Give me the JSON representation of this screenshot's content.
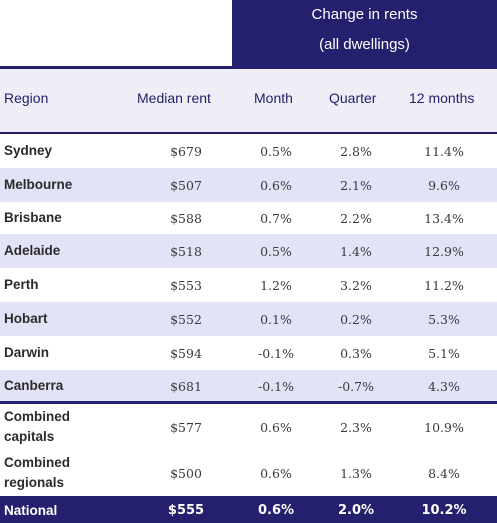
{
  "header": {
    "group_title_line1": "Change in rents",
    "group_title_line2": "(all dwellings)"
  },
  "columns": {
    "region": "Region",
    "median": "Median rent",
    "month": "Month",
    "quarter": "Quarter",
    "year": "12 months"
  },
  "rows": [
    {
      "region": "Sydney",
      "median": "$679",
      "month": "0.5%",
      "quarter": "2.8%",
      "year": "11.4%"
    },
    {
      "region": "Melbourne",
      "median": "$507",
      "month": "0.6%",
      "quarter": "2.1%",
      "year": "9.6%"
    },
    {
      "region": "Brisbane",
      "median": "$588",
      "month": "0.7%",
      "quarter": "2.2%",
      "year": "13.4%"
    },
    {
      "region": "Adelaide",
      "median": "$518",
      "month": "0.5%",
      "quarter": "1.4%",
      "year": "12.9%"
    },
    {
      "region": "Perth",
      "median": "$553",
      "month": "1.2%",
      "quarter": "3.2%",
      "year": "11.2%"
    },
    {
      "region": "Hobart",
      "median": "$552",
      "month": "0.1%",
      "quarter": "0.2%",
      "year": "5.3%"
    },
    {
      "region": "Darwin",
      "median": "$594",
      "month": "-0.1%",
      "quarter": "0.3%",
      "year": "5.1%"
    },
    {
      "region": "Canberra",
      "median": "$681",
      "month": "-0.1%",
      "quarter": "-0.7%",
      "year": "4.3%"
    },
    {
      "region_line1": "Combined",
      "region_line2": "capitals",
      "median": "$577",
      "month": "0.6%",
      "quarter": "2.3%",
      "year": "10.9%"
    },
    {
      "region_line1": "Combined",
      "region_line2": "regionals",
      "median": "$500",
      "month": "0.6%",
      "quarter": "1.3%",
      "year": "8.4%"
    }
  ],
  "national": {
    "region": "National",
    "median": "$555",
    "month": "0.6%",
    "quarter": "2.0%",
    "year": "10.2%"
  },
  "colors": {
    "navy": "#25206d",
    "band": "#e3e3f7",
    "header_bg": "#efeef7"
  }
}
